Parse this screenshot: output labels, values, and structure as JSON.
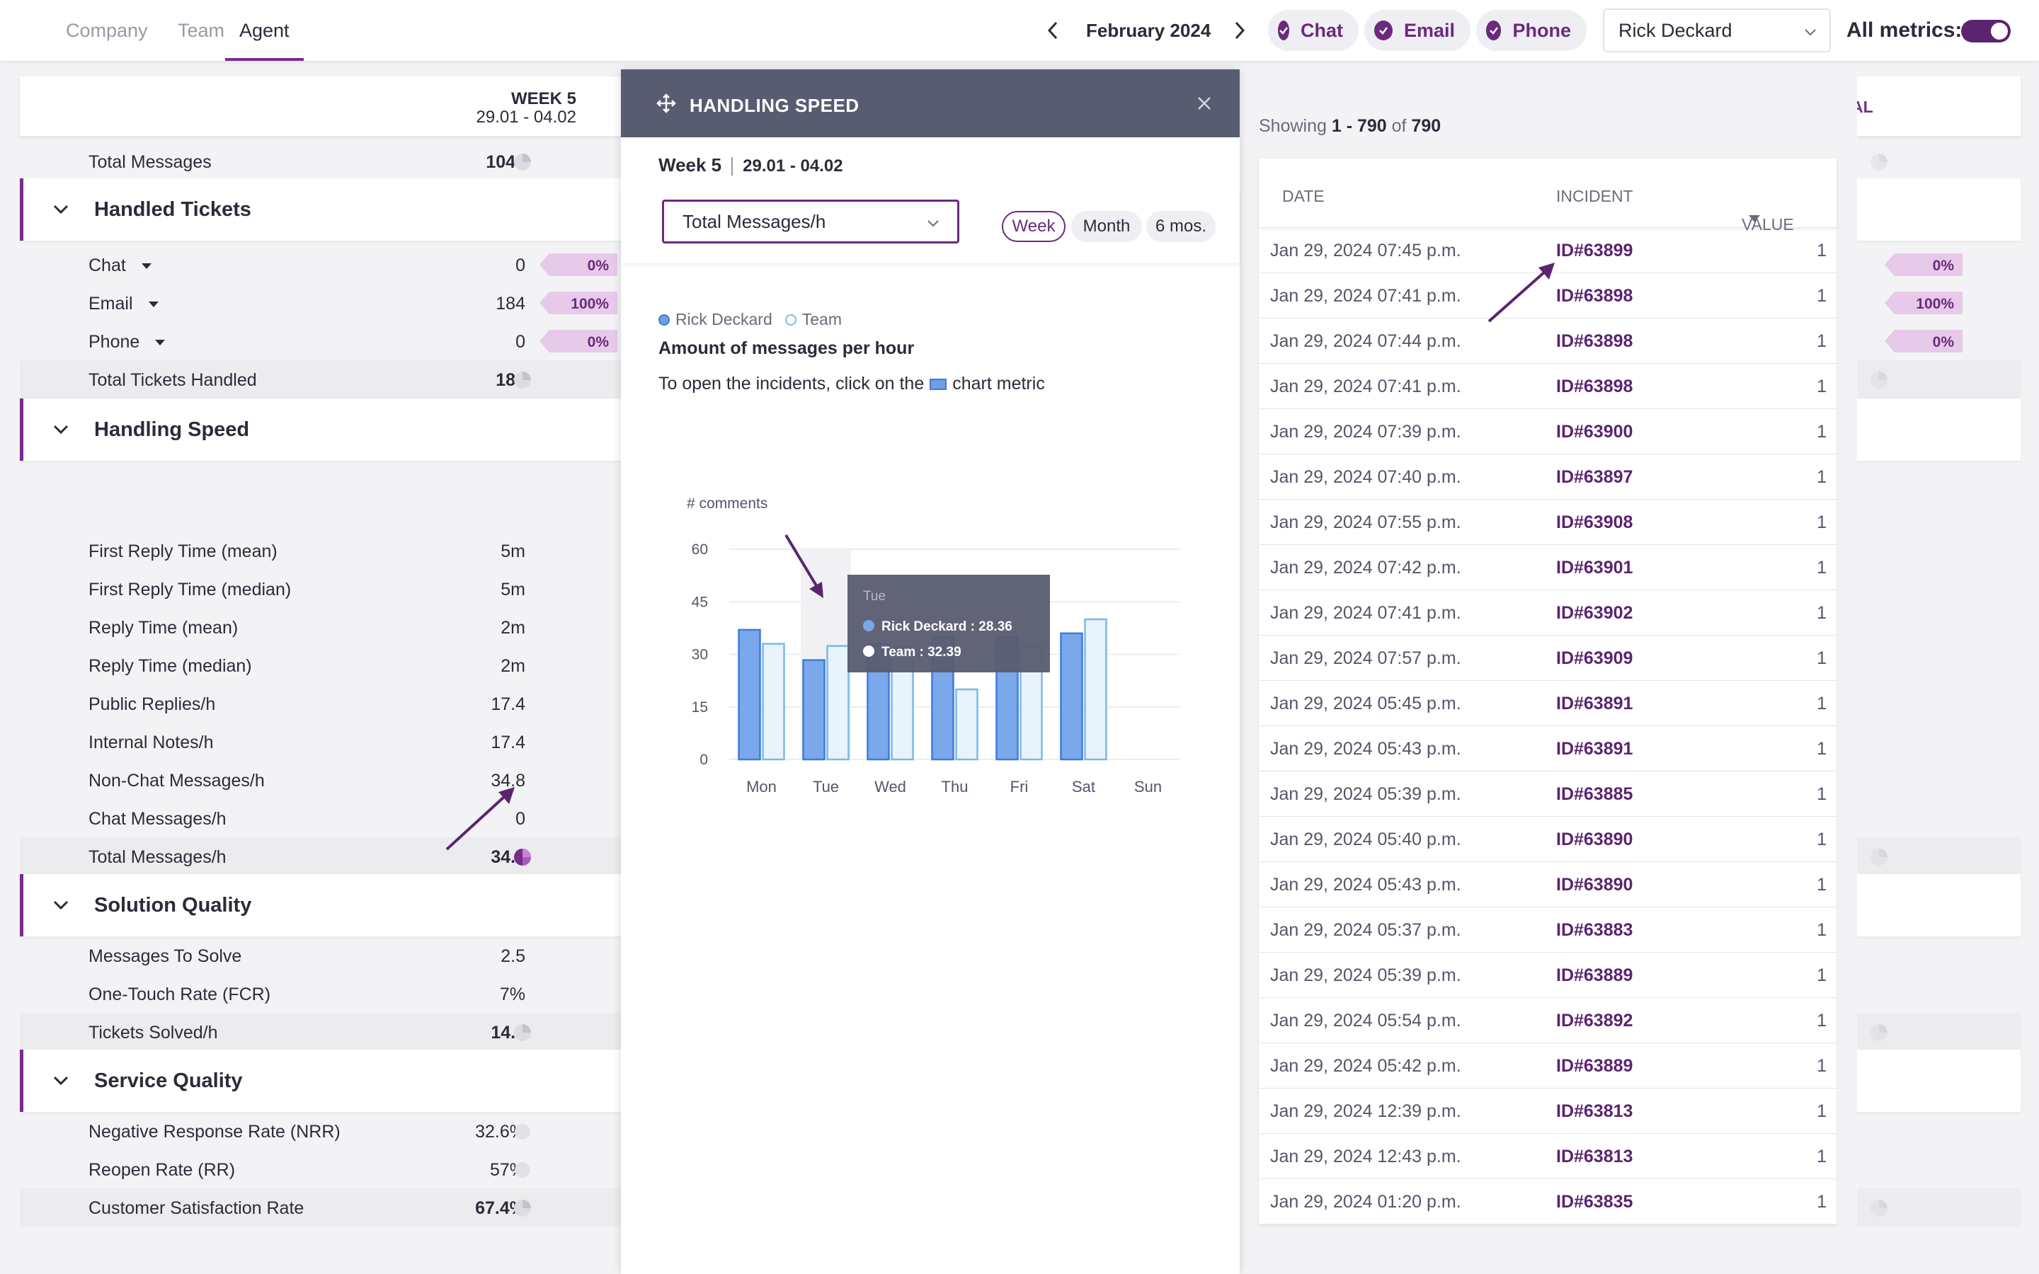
{
  "header": {
    "tabs": [
      {
        "label": "Company"
      },
      {
        "label": "Team"
      },
      {
        "label": "Agent"
      }
    ],
    "month": "February 2024",
    "channels": [
      {
        "label": "Chat"
      },
      {
        "label": "Email"
      },
      {
        "label": "Phone"
      }
    ],
    "agent": "Rick Deckard",
    "all_metrics_label": "All metrics:",
    "all_metrics_on": true
  },
  "metrics": {
    "week_title": "WEEK 5",
    "week_range": "29.01 - 04.02",
    "total_col_label": "AL",
    "total_messages": {
      "label": "Total Messages",
      "value": "1044"
    },
    "handled_tickets": {
      "title": "Handled Tickets",
      "rows": [
        {
          "label": "Chat",
          "value": "0",
          "pct": "0%",
          "pct_total": "0%"
        },
        {
          "label": "Email",
          "value": "184",
          "pct": "100%",
          "pct_total": "100%"
        },
        {
          "label": "Phone",
          "value": "0",
          "pct": "0%",
          "pct_total": "0%"
        }
      ],
      "total": {
        "label": "Total Tickets Handled",
        "value": "184"
      }
    },
    "handling_speed": {
      "title": "Handling Speed",
      "rows": [
        {
          "label": "First Reply Time (mean)",
          "value": "5m"
        },
        {
          "label": "First Reply Time (median)",
          "value": "5m"
        },
        {
          "label": "Reply Time (mean)",
          "value": "2m"
        },
        {
          "label": "Reply Time (median)",
          "value": "2m"
        },
        {
          "label": "Public Replies/h",
          "value": "17.4"
        },
        {
          "label": "Internal Notes/h",
          "value": "17.4"
        },
        {
          "label": "Non-Chat Messages/h",
          "value": "34.8"
        },
        {
          "label": "Chat Messages/h",
          "value": "0"
        }
      ],
      "total": {
        "label": "Total Messages/h",
        "value": "34.8"
      }
    },
    "solution_quality": {
      "title": "Solution Quality",
      "rows": [
        {
          "label": "Messages To Solve",
          "value": "2.5"
        },
        {
          "label": "One-Touch Rate (FCR)",
          "value": "7%"
        }
      ],
      "total": {
        "label": "Tickets Solved/h",
        "value": "14.3"
      }
    },
    "service_quality": {
      "title": "Service Quality",
      "rows": [
        {
          "label": "Negative Response Rate (NRR)",
          "value": "32.6%"
        },
        {
          "label": "Reopen Rate (RR)",
          "value": "57%"
        }
      ],
      "total": {
        "label": "Customer Satisfaction Rate",
        "value": "67.4%"
      }
    }
  },
  "modal": {
    "title": "HANDLING SPEED",
    "week": "Week 5",
    "range": "29.01 - 04.02",
    "metric": "Total Messages/h",
    "periods": [
      "Week",
      "Month",
      "6 mos."
    ],
    "active_period": "Week",
    "legend_rick": "Rick Deckard",
    "legend_team": "Team",
    "chart_title": "Amount of messages per hour",
    "hint_before": "To open the incidents, click on the",
    "hint_after": "chart metric"
  },
  "chart_data": {
    "type": "bar",
    "title": "Amount of messages per hour",
    "ylabel": "# comments",
    "xlabel": "",
    "categories": [
      "Mon",
      "Tue",
      "Wed",
      "Thu",
      "Fri",
      "Sat",
      "Sun"
    ],
    "ylim": [
      0,
      60
    ],
    "yticks": [
      0,
      15,
      30,
      45,
      60
    ],
    "series": [
      {
        "name": "Rick Deckard",
        "values": [
          37,
          28.36,
          33,
          35,
          35,
          36,
          0
        ],
        "color": "#7aa8ea",
        "edge": "#3f7bd9"
      },
      {
        "name": "Team",
        "values": [
          33,
          32.39,
          32,
          20,
          32,
          40,
          0
        ],
        "color": "#e8f3fc",
        "edge": "#7bb9e9"
      }
    ],
    "tooltip": {
      "category": "Tue",
      "rick_label": "Rick Deckard :",
      "rick_value": "28.36",
      "team_label": "Team :",
      "team_value": "32.39"
    },
    "colors": {
      "rick_fill": "#7aa8ea",
      "rick_edge": "#3f7bd9",
      "team_fill": "#e8f3fc",
      "team_edge": "#7bb9e9",
      "tooltip_bg": "#585c70"
    },
    "grid": true
  },
  "incidents": {
    "showing_prefix": "Showing",
    "range": "1 - 790",
    "of": "of",
    "total": "790",
    "columns": {
      "date": "DATE",
      "incident": "INCIDENT",
      "value": "VALUE"
    },
    "rows": [
      {
        "date": "Jan 29, 2024 07:45 p.m.",
        "id": "ID#63899",
        "value": "1"
      },
      {
        "date": "Jan 29, 2024 07:41 p.m.",
        "id": "ID#63898",
        "value": "1"
      },
      {
        "date": "Jan 29, 2024 07:44 p.m.",
        "id": "ID#63898",
        "value": "1"
      },
      {
        "date": "Jan 29, 2024 07:41 p.m.",
        "id": "ID#63898",
        "value": "1"
      },
      {
        "date": "Jan 29, 2024 07:39 p.m.",
        "id": "ID#63900",
        "value": "1"
      },
      {
        "date": "Jan 29, 2024 07:40 p.m.",
        "id": "ID#63897",
        "value": "1"
      },
      {
        "date": "Jan 29, 2024 07:55 p.m.",
        "id": "ID#63908",
        "value": "1"
      },
      {
        "date": "Jan 29, 2024 07:42 p.m.",
        "id": "ID#63901",
        "value": "1"
      },
      {
        "date": "Jan 29, 2024 07:41 p.m.",
        "id": "ID#63902",
        "value": "1"
      },
      {
        "date": "Jan 29, 2024 07:57 p.m.",
        "id": "ID#63909",
        "value": "1"
      },
      {
        "date": "Jan 29, 2024 05:45 p.m.",
        "id": "ID#63891",
        "value": "1"
      },
      {
        "date": "Jan 29, 2024 05:43 p.m.",
        "id": "ID#63891",
        "value": "1"
      },
      {
        "date": "Jan 29, 2024 05:39 p.m.",
        "id": "ID#63885",
        "value": "1"
      },
      {
        "date": "Jan 29, 2024 05:40 p.m.",
        "id": "ID#63890",
        "value": "1"
      },
      {
        "date": "Jan 29, 2024 05:43 p.m.",
        "id": "ID#63890",
        "value": "1"
      },
      {
        "date": "Jan 29, 2024 05:37 p.m.",
        "id": "ID#63883",
        "value": "1"
      },
      {
        "date": "Jan 29, 2024 05:39 p.m.",
        "id": "ID#63889",
        "value": "1"
      },
      {
        "date": "Jan 29, 2024 05:54 p.m.",
        "id": "ID#63892",
        "value": "1"
      },
      {
        "date": "Jan 29, 2024 05:42 p.m.",
        "id": "ID#63889",
        "value": "1"
      },
      {
        "date": "Jan 29, 2024 12:39 p.m.",
        "id": "ID#63813",
        "value": "1"
      },
      {
        "date": "Jan 29, 2024 12:43 p.m.",
        "id": "ID#63813",
        "value": "1"
      },
      {
        "date": "Jan 29, 2024 01:20 p.m.",
        "id": "ID#63835",
        "value": "1"
      }
    ]
  },
  "icons": {
    "check": "check-icon",
    "chevron": "chevron-down-icon",
    "pie": "pie-chart-icon",
    "move": "move-icon",
    "close": "close-icon"
  },
  "colors": {
    "accent": "#7a2b8c",
    "header_bg": "#585c70",
    "link": "#5b2470"
  }
}
